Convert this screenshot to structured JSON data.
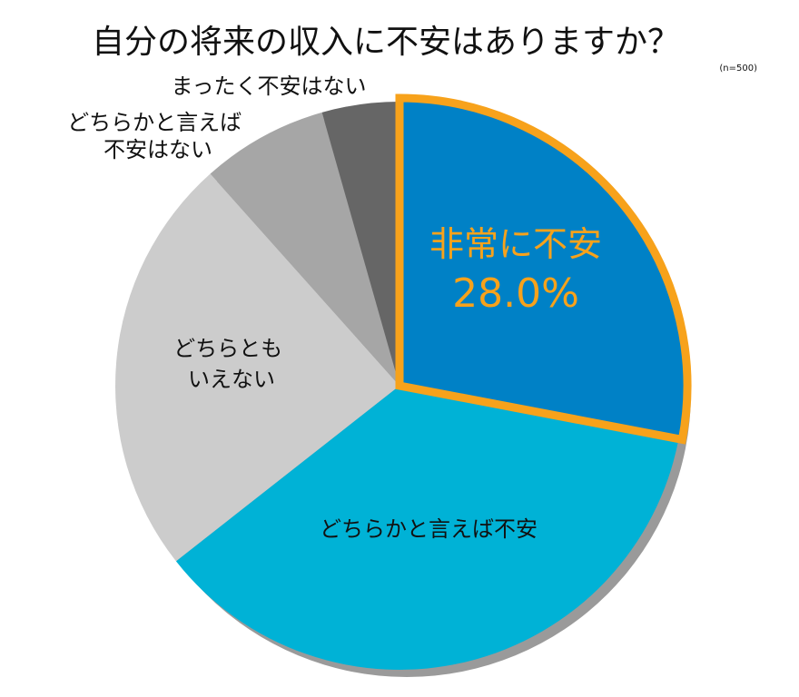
{
  "chart_data": {
    "type": "pie",
    "title": "自分の将来の収入に不安はありますか？",
    "note": "(n=500)",
    "slices": [
      {
        "label": "非常に不安",
        "value": 28.0,
        "value_label": "28.0%",
        "color": "#0081c6",
        "highlight": true,
        "highlight_color": "#f7a21b"
      },
      {
        "label": "どちらかと言えば不安",
        "value": 36.4,
        "color": "#00b2d6"
      },
      {
        "label": "どちらともいえない",
        "value": 24.0,
        "color": "#cccccc"
      },
      {
        "label": "どちらかと言えば不安はない",
        "value": 7.2,
        "color": "#a6a6a6"
      },
      {
        "label": "まったく不安はない",
        "value": 4.4,
        "color": "#666666"
      }
    ]
  }
}
